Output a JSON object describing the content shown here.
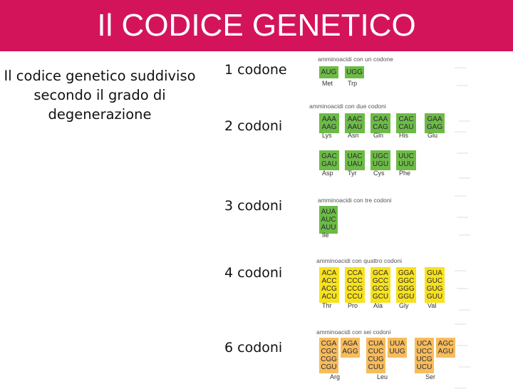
{
  "title": "Il CODICE GENETICO",
  "subtitle": "Il codice genetico suddiviso secondo il grado di degenerazione",
  "row_labels": [
    "1 codone",
    "2 codoni",
    "3 codoni",
    "4 codoni",
    "6 codoni"
  ],
  "colors": {
    "title_bar": "#d4145a",
    "green": "#6dbb45",
    "yellow": "#f8e21a",
    "orange": "#f7bc5b"
  },
  "groups": [
    {
      "title": "amminoacidi con un codone",
      "color": "green",
      "amino": [
        {
          "name": "Met",
          "codons": [
            "AUG"
          ]
        },
        {
          "name": "Trp",
          "codons": [
            "UGG"
          ]
        }
      ]
    },
    {
      "title": "amminoacidi con due codoni",
      "color": "green",
      "amino": [
        {
          "name": "Lys",
          "codons": [
            "AAA",
            "AAG"
          ]
        },
        {
          "name": "Asn",
          "codons": [
            "AAC",
            "AAU"
          ]
        },
        {
          "name": "Gln",
          "codons": [
            "CAA",
            "CAG"
          ]
        },
        {
          "name": "His",
          "codons": [
            "CAC",
            "CAU"
          ]
        },
        {
          "name": "Glu",
          "codons": [
            "GAA",
            "GAG"
          ]
        }
      ]
    },
    {
      "title": "",
      "color": "green",
      "amino": [
        {
          "name": "Asp",
          "codons": [
            "GAC",
            "GAU"
          ]
        },
        {
          "name": "Tyr",
          "codons": [
            "UAC",
            "UAU"
          ]
        },
        {
          "name": "Cys",
          "codons": [
            "UGC",
            "UGU"
          ]
        },
        {
          "name": "Phe",
          "codons": [
            "UUC",
            "UUU"
          ]
        }
      ]
    },
    {
      "title": "amminoacidi con tre codoni",
      "color": "green",
      "amino": [
        {
          "name": "Ile",
          "codons": [
            "AUA",
            "AUC",
            "AUU"
          ]
        }
      ]
    },
    {
      "title": "amminoacidi con quattro codoni",
      "color": "yellow",
      "amino": [
        {
          "name": "Thr",
          "codons": [
            "ACA",
            "ACC",
            "ACG",
            "ACU"
          ]
        },
        {
          "name": "Pro",
          "codons": [
            "CCA",
            "CCC",
            "CCG",
            "CCU"
          ]
        },
        {
          "name": "Ala",
          "codons": [
            "GCA",
            "GCC",
            "GCG",
            "GCU"
          ]
        },
        {
          "name": "Gly",
          "codons": [
            "GGA",
            "GGC",
            "GGG",
            "GGU"
          ]
        },
        {
          "name": "Val",
          "codons": [
            "GUA",
            "GUC",
            "GUG",
            "GUU"
          ]
        }
      ]
    },
    {
      "title": "amminoacidi con sei codoni",
      "color": "orange",
      "amino": [
        {
          "name": "Arg",
          "codons": [
            "CGA",
            "CGC",
            "CGG",
            "CGU",
            "AGA",
            "AGG"
          ]
        },
        {
          "name": "Leu",
          "codons": [
            "CUA",
            "CUC",
            "CUG",
            "CUU",
            "UUA",
            "UUG"
          ]
        },
        {
          "name": "Ser",
          "codons": [
            "UCA",
            "UCC",
            "UCG",
            "UCU",
            "AGC",
            "AGU"
          ]
        }
      ]
    }
  ]
}
